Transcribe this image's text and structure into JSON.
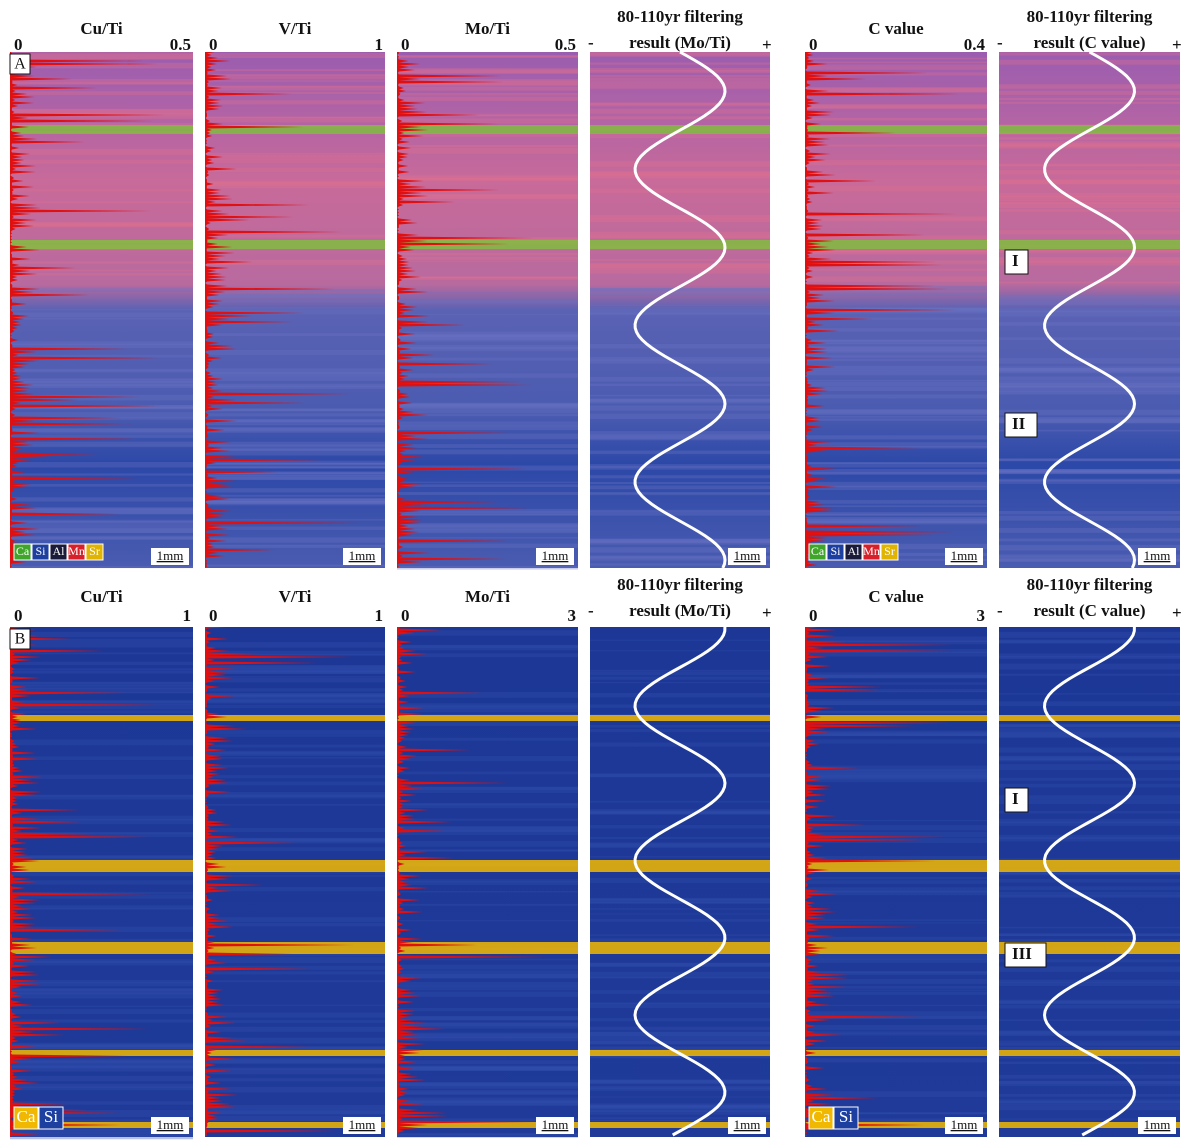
{
  "panels": [
    {
      "label": "A",
      "scale_bar": "1mm",
      "minus": "-",
      "plus": "+",
      "legend": [
        {
          "name": "Ca",
          "color": "#3fa62a"
        },
        {
          "name": "Si",
          "color": "#1d3fa0"
        },
        {
          "name": "Al",
          "color": "#1a1a3a"
        },
        {
          "name": "Mn",
          "color": "#d8202a"
        },
        {
          "name": "Sr",
          "color": "#e0b400"
        }
      ],
      "columns": [
        {
          "title": "Cu/Ti",
          "axis_min": "0",
          "axis_max": "0.5"
        },
        {
          "title": "V/Ti",
          "axis_min": "0",
          "axis_max": "1"
        },
        {
          "title": "Mo/Ti",
          "axis_min": "0",
          "axis_max": "0.5"
        },
        {
          "title_lines": [
            "80-110yr filtering",
            "result (Mo/Ti)"
          ]
        },
        {
          "title": "C value",
          "axis_min": "0",
          "axis_max": "0.4"
        },
        {
          "title_lines": [
            "80-110yr filtering",
            "result (C value)"
          ]
        }
      ],
      "zones": [
        "I",
        "II"
      ]
    },
    {
      "label": "B",
      "scale_bar": "1mm",
      "minus": "-",
      "plus": "+",
      "legend": [
        {
          "name": "Ca",
          "color": "#f0b800"
        },
        {
          "name": "Si",
          "color": "#1d3fa0"
        }
      ],
      "columns": [
        {
          "title": "Cu/Ti",
          "axis_min": "0",
          "axis_max": "1"
        },
        {
          "title": "V/Ti",
          "axis_min": "0",
          "axis_max": "1"
        },
        {
          "title": "Mo/Ti",
          "axis_min": "0",
          "axis_max": "3"
        },
        {
          "title_lines": [
            "80-110yr filtering",
            "result (Mo/Ti)"
          ]
        },
        {
          "title": "C value",
          "axis_min": "0",
          "axis_max": "3"
        },
        {
          "title_lines": [
            "80-110yr filtering",
            "result (C value)"
          ]
        }
      ],
      "zones": [
        "I",
        "III"
      ]
    }
  ]
}
